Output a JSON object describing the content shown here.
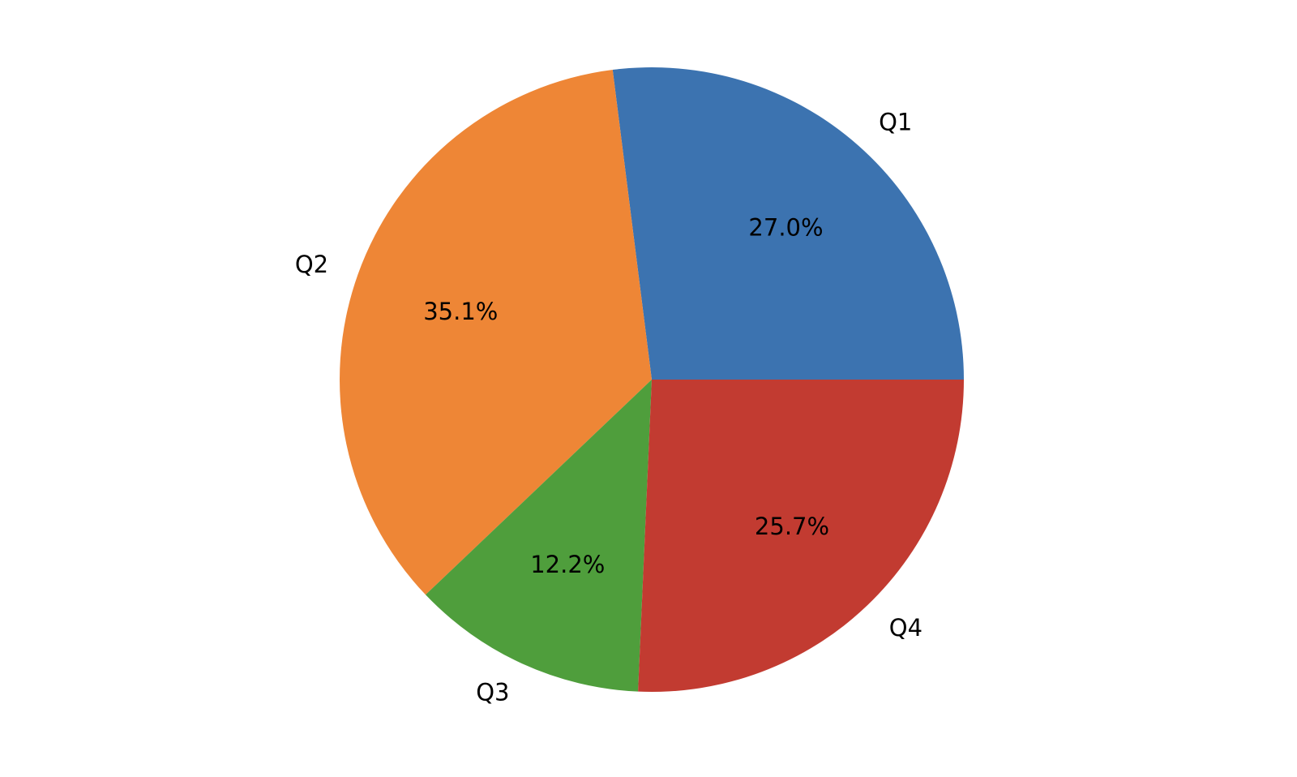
{
  "canvas": {
    "background": "#ffffff",
    "text_color": "#000000"
  },
  "chart_data": {
    "type": "pie",
    "categories": [
      "Q1",
      "Q2",
      "Q3",
      "Q4"
    ],
    "values": [
      27.0,
      35.1,
      12.2,
      25.7
    ],
    "pct_labels": [
      "27.0%",
      "35.1%",
      "12.2%",
      "25.7%"
    ],
    "slice_colors": [
      "#3c73b0",
      "#ee8636",
      "#4f9e3c",
      "#c23b31"
    ],
    "start_angle_deg": 0,
    "direction": "counterclockwise",
    "label_distance": 1.1,
    "pct_distance": 0.65,
    "title": "",
    "legend_position": "none",
    "grid": "off"
  }
}
